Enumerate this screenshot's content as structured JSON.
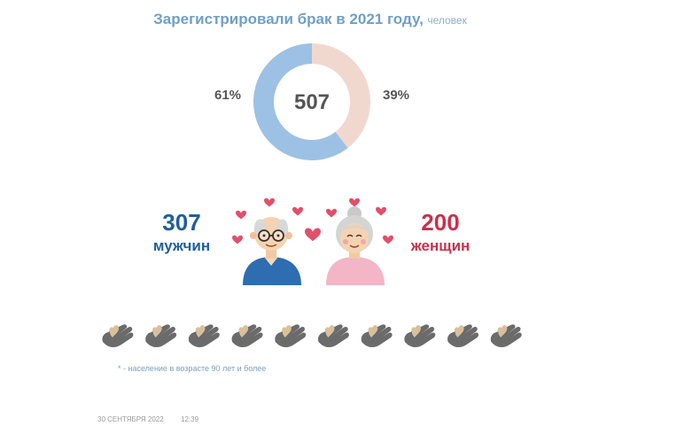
{
  "header": {
    "title": "Зарегистрировали брак в 2021 году,",
    "unit": "человек"
  },
  "chart_data": {
    "type": "pie",
    "total_label": "507",
    "slices": [
      {
        "label": "61%",
        "value": 307,
        "share": 0.61,
        "color": "#9dc1e4"
      },
      {
        "label": "39%",
        "value": 200,
        "share": 0.39,
        "color": "#f1d8cf"
      }
    ]
  },
  "men": {
    "count": "307",
    "label": "мужчин",
    "color": "#1f5f9a"
  },
  "women": {
    "count": "200",
    "label": "женщин",
    "color": "#c9304d"
  },
  "colors": {
    "heart": "#e0506a",
    "hand": "#6b6b6b",
    "heart_gold": "#d9c09a"
  },
  "footnote": "* - население  в возрасте   90 лет  и более",
  "footer": {
    "date": "30 СЕНТЯБРЯ 2022",
    "time": "12:39"
  }
}
